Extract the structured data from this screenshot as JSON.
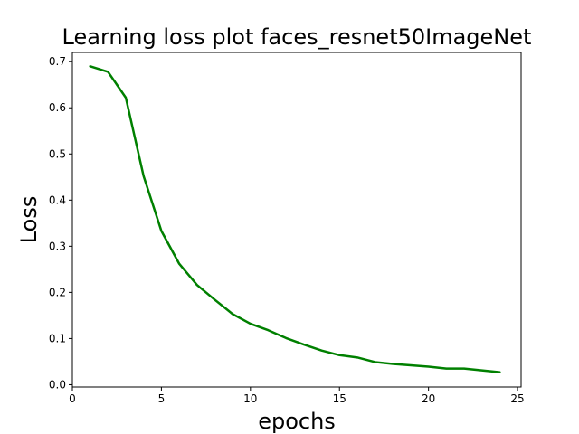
{
  "chart_data": {
    "type": "line",
    "title": "Learning loss plot faces_resnet50ImageNet",
    "xlabel": "epochs",
    "ylabel": "Loss",
    "xlim": [
      0,
      25.2
    ],
    "ylim": [
      -0.005,
      0.72
    ],
    "xticks": [
      0,
      5,
      10,
      15,
      20,
      25
    ],
    "yticks": [
      0.0,
      0.1,
      0.2,
      0.3,
      0.4,
      0.5,
      0.6,
      0.7
    ],
    "xtick_labels": [
      "0",
      "5",
      "10",
      "15",
      "20",
      "25"
    ],
    "ytick_labels": [
      "0.0",
      "0.1",
      "0.2",
      "0.3",
      "0.4",
      "0.5",
      "0.6",
      "0.7"
    ],
    "grid": false,
    "line_color": "#008000",
    "x": [
      1,
      2,
      3,
      4,
      5,
      6,
      7,
      8,
      9,
      10,
      11,
      12,
      13,
      14,
      15,
      16,
      17,
      18,
      19,
      20,
      21,
      22,
      23,
      24
    ],
    "y": [
      0.69,
      0.678,
      0.622,
      0.452,
      0.333,
      0.262,
      0.216,
      0.184,
      0.153,
      0.132,
      0.118,
      0.101,
      0.087,
      0.074,
      0.064,
      0.059,
      0.049,
      0.045,
      0.042,
      0.039,
      0.035,
      0.035,
      0.031,
      0.027
    ]
  }
}
